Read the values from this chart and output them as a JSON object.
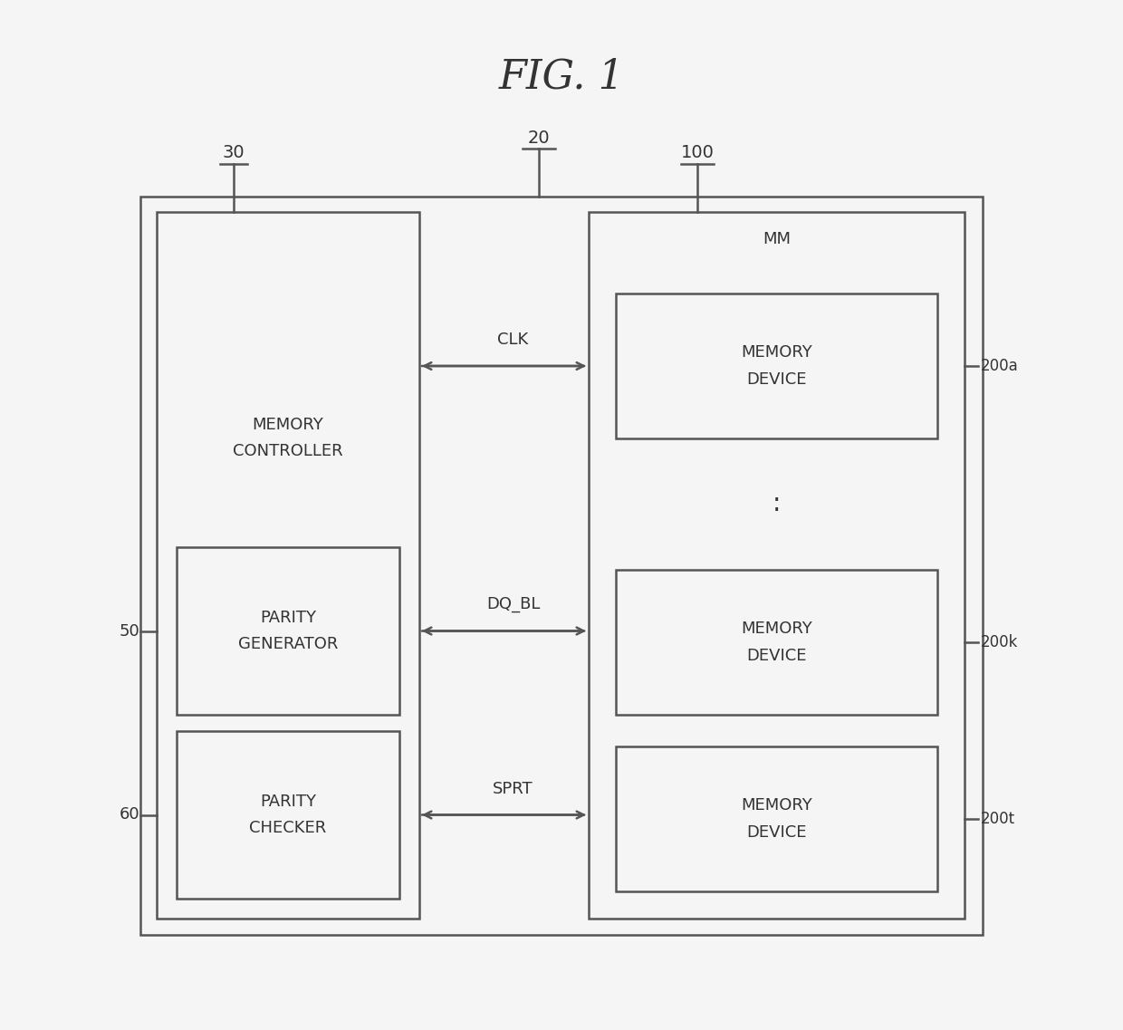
{
  "title": "FIG. 1",
  "title_fontsize": 32,
  "bg_color": "#f5f5f5",
  "line_color": "#555555",
  "text_color": "#333333",
  "label_20": "20",
  "label_30": "30",
  "label_50": "50",
  "label_60": "60",
  "label_100": "100",
  "label_200a": "200a",
  "label_200k": "200k",
  "label_200t": "200t",
  "label_MM": "MM",
  "label_memory_controller": "MEMORY\nCONTROLLER",
  "label_parity_generator": "PARITY\nGENERATOR",
  "label_parity_checker": "PARITY\nCHECKER",
  "label_memory_device": "MEMORY\nDEVICE",
  "label_CLK": "CLK",
  "label_DQ_BL": "DQ_BL",
  "label_SPRT": "SPRT",
  "font_size_box": 13,
  "font_size_label": 13,
  "font_size_signal": 13,
  "font_size_dots": 20
}
